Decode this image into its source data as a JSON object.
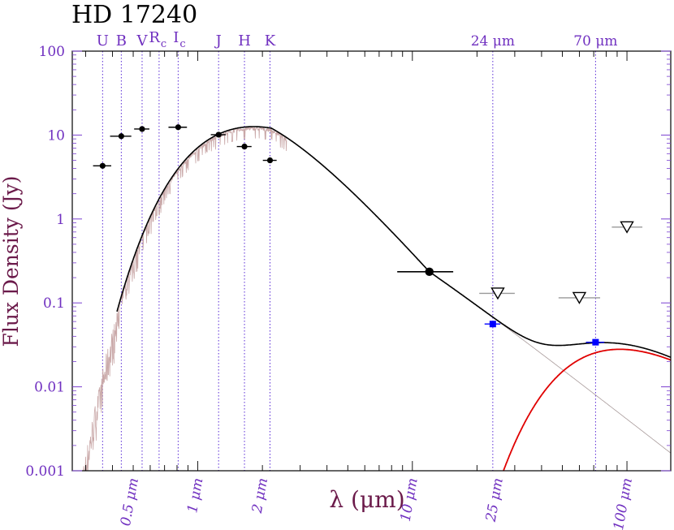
{
  "chart_data": {
    "type": "scatter",
    "title": "HD 17240",
    "xlabel": "λ (μm)",
    "ylabel": "Flux Density (Jy)",
    "x_scale": "log",
    "y_scale": "log",
    "xlim": [
      0.26,
      160
    ],
    "ylim": [
      0.001,
      100
    ],
    "y_tick_values": [
      0.001,
      0.01,
      0.1,
      1,
      10,
      100
    ],
    "y_tick_labels": [
      "0.001",
      "0.01",
      "0.1",
      "1",
      "10",
      "100"
    ],
    "x_tick_values": [
      0.5,
      1,
      2,
      10,
      25,
      100
    ],
    "x_tick_labels": [
      "0.5 μm",
      "1 μm",
      "2 μm",
      "10 μm",
      "25 μm",
      "100 μm"
    ],
    "band_markers": [
      {
        "label": "U",
        "sub": "",
        "x": 0.36
      },
      {
        "label": "B",
        "sub": "",
        "x": 0.44
      },
      {
        "label": "V",
        "sub": "",
        "x": 0.55
      },
      {
        "label": "R",
        "sub": "c",
        "x": 0.66
      },
      {
        "label": "I",
        "sub": "c",
        "x": 0.81
      },
      {
        "label": "J",
        "sub": "",
        "x": 1.25
      },
      {
        "label": "H",
        "sub": "",
        "x": 1.65
      },
      {
        "label": "K",
        "sub": "",
        "x": 2.17
      },
      {
        "label": "24 μm",
        "sub": "",
        "x": 23.7
      },
      {
        "label": "70 μm",
        "sub": "",
        "x": 71.4
      }
    ],
    "series": [
      {
        "type": "photometry",
        "color": "#000000",
        "points": [
          {
            "x": 0.36,
            "y": 4.3,
            "xerr": 0.035
          },
          {
            "x": 0.44,
            "y": 9.7,
            "xerr": 0.05
          },
          {
            "x": 0.55,
            "y": 11.8,
            "xerr": 0.045
          },
          {
            "x": 0.81,
            "y": 12.4,
            "xerr": 0.08
          },
          {
            "x": 1.25,
            "y": 10.1,
            "xerr": 0.1
          },
          {
            "x": 1.65,
            "y": 7.3,
            "xerr": 0.13
          },
          {
            "x": 2.17,
            "y": 5.0,
            "xerr": 0.16
          }
        ]
      },
      {
        "type": "photometry-large",
        "color": "#000000",
        "points": [
          {
            "x": 12.0,
            "y": 0.235,
            "xlo": 8.5,
            "xhi": 15.5
          }
        ]
      },
      {
        "type": "mips-detection",
        "color": "#0000ff",
        "points": [
          {
            "x": 23.7,
            "y": 0.056,
            "xerr": 2.0
          },
          {
            "x": 71.4,
            "y": 0.034,
            "xerr": 7.0
          }
        ]
      },
      {
        "type": "upper-limit",
        "color": "#000000",
        "points": [
          {
            "x": 25.0,
            "y": 0.13,
            "xlo": 20.5,
            "xhi": 30.0
          },
          {
            "x": 60.0,
            "y": 0.115,
            "xlo": 48.0,
            "xhi": 75.0
          },
          {
            "x": 100.0,
            "y": 0.8,
            "xlo": 85.0,
            "xhi": 118.0
          }
        ]
      },
      {
        "type": "total-model",
        "color": "#000000",
        "stellar_peak_jy": 12.6,
        "stellar_peak_um": 0.69,
        "turnover_um": 1.1,
        "rj_anchor": {
          "x": 12.0,
          "y": 0.235
        }
      },
      {
        "type": "dust-blackbody",
        "color": "#ff0000",
        "temperature_k": 55,
        "peak_um": 90,
        "peak_jy": 0.028
      }
    ]
  }
}
